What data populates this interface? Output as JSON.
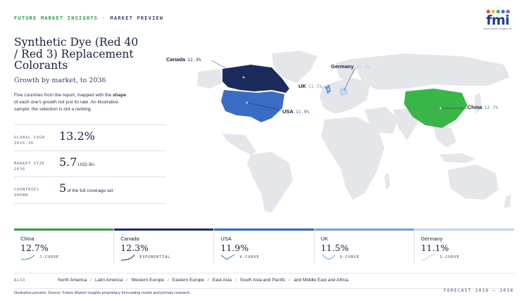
{
  "header": {
    "brand": "FUTURE MARKET INSIGHTS",
    "separator": "·",
    "preview": "MARKET PREVIEW"
  },
  "logo": {
    "text": "fmi",
    "tagline": "Future Market Insights Inc.",
    "dot_colors": [
      "#e8443a",
      "#f3b23c",
      "#3ab54a",
      "#2d6cdf",
      "#8b4fc8"
    ]
  },
  "title": "Synthetic Dye (Red 40 / Red 3) Replacement Colorants",
  "subtitle": "Growth by market, to 2036",
  "description": {
    "before": "Five countries from the report, mapped with the ",
    "bold": "shape",
    "after": " of each one's growth not just its rate. An illustrative sample; the selection is not a ranking."
  },
  "stats": [
    {
      "label_line1": "GLOBAL CAGR",
      "label_line2": "2026-36",
      "value": "13.2%",
      "unit": ""
    },
    {
      "label_line1": "MARKET SIZE",
      "label_line2": "2036",
      "value": "5.7",
      "unit": "USD Bn"
    },
    {
      "label_line1": "COUNTRIES",
      "label_line2": "SHOWN",
      "value": "5",
      "unit": "of the full coverage set"
    }
  ],
  "map_labels": [
    {
      "name": "Canada",
      "pct": "12.3%",
      "pct_color": "#1c2b5e"
    },
    {
      "name": "Germany",
      "pct": "11.1%",
      "pct_color": "#a9c8e8"
    },
    {
      "name": "UK",
      "pct": "11.5%",
      "pct_color": "#6fa0d8"
    },
    {
      "name": "USA",
      "pct": "11.9%",
      "pct_color": "#2f67c2"
    },
    {
      "name": "China",
      "pct": "12.7%",
      "pct_color": "#2e9e4a"
    }
  ],
  "colors": {
    "china": "#3ab54a",
    "canada": "#1c2b5e",
    "usa": "#3a6cc4",
    "uk": "#6fa0d8",
    "germany": "#b9d4ee",
    "land": "#e4e6ea"
  },
  "cards": [
    {
      "name": "China",
      "cagr": "12.7%",
      "shape": "J-CURVE",
      "color": "#2e9e4a"
    },
    {
      "name": "Canada",
      "cagr": "12.3%",
      "shape": "EXPONENTIAL",
      "color": "#1c2b5e"
    },
    {
      "name": "USA",
      "cagr": "11.9%",
      "shape": "V-CURVE",
      "color": "#2f67c2"
    },
    {
      "name": "UK",
      "cagr": "11.5%",
      "shape": "U-CURVE",
      "color": "#6fa0d8"
    },
    {
      "name": "Germany",
      "cagr": "11.1%",
      "shape": "S-CURVE",
      "color": "#b9d4ee"
    }
  ],
  "also": {
    "label": "ALSO",
    "regions": [
      "North America",
      "Latin America",
      "Western Europe",
      "Eastern Europe",
      "East Asia",
      "South Asia and Pacific",
      "and Middle East and Africa."
    ]
  },
  "footer": {
    "source": "Illustrative preview. Source: Future Market Insights proprietary forecasting model and primary research.",
    "forecast": "FORECAST 2026 – 2036"
  }
}
